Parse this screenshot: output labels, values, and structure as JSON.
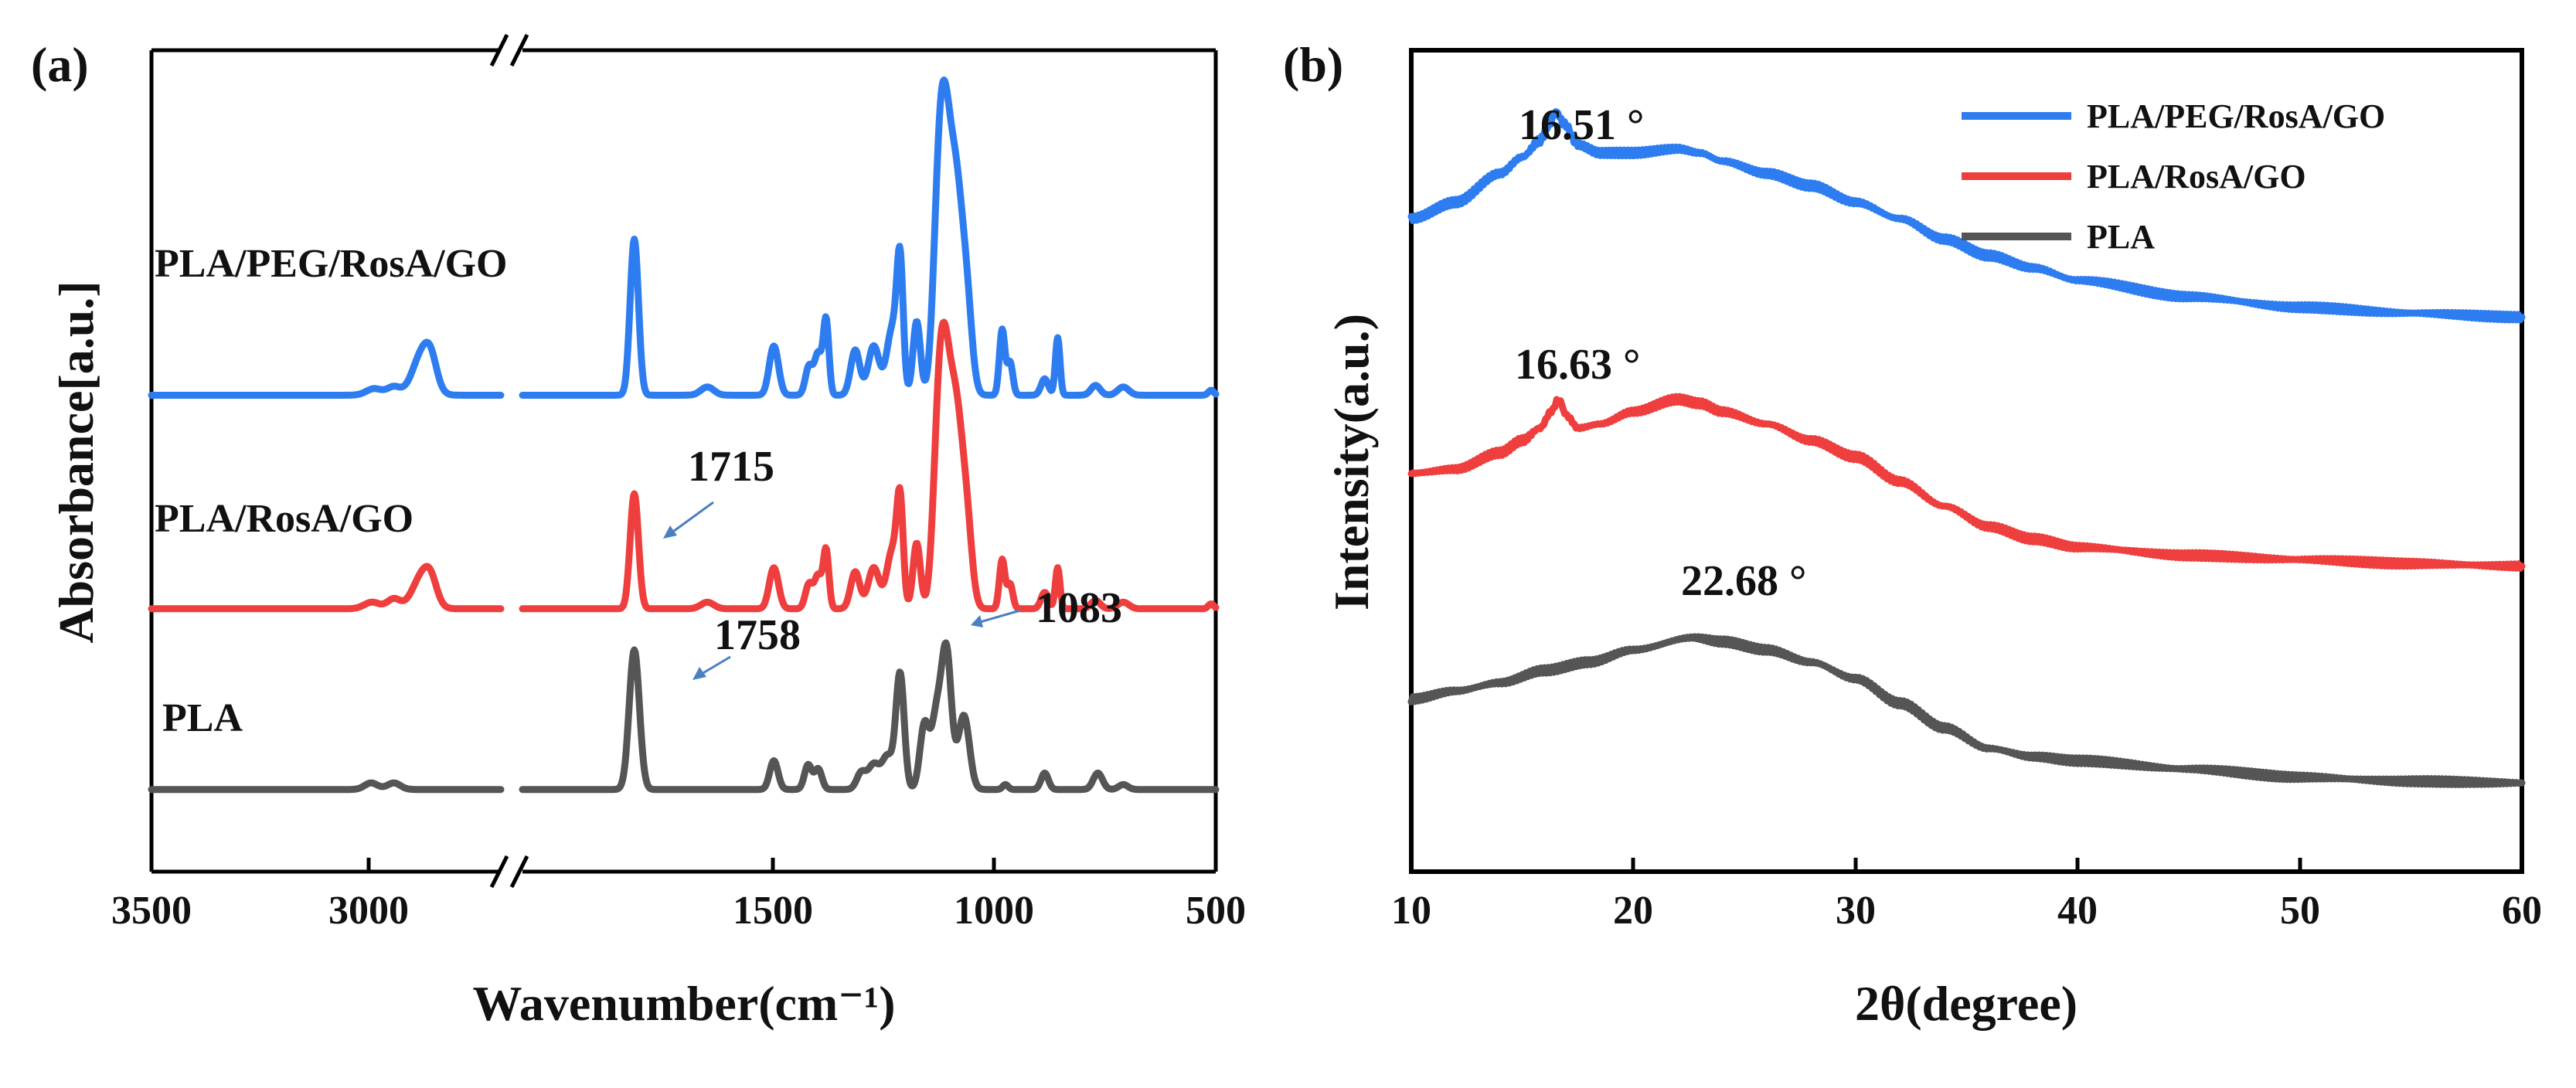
{
  "colors": {
    "PLA/PEG/RosA/GO": "#2e7df0",
    "PLA/RosA/GO": "#ef3e3e",
    "PLA": "#555555",
    "annotation_arrow": "#4a7fc1"
  },
  "chart_data": [
    {
      "panel": "(a)",
      "type": "line",
      "title": "",
      "xlabel": "Wavenumber(cm⁻¹)",
      "ylabel": "Absorbance[a.u.]",
      "x_reversed": true,
      "x_axis_break": true,
      "x_segments": [
        {
          "xlim": [
            3500,
            2700
          ],
          "ticks": [
            3500,
            3000
          ]
        },
        {
          "xlim": [
            2000,
            500
          ],
          "ticks": [
            1500,
            1000,
            500
          ]
        }
      ],
      "x_tick_labels": [
        "3500",
        "3000",
        "1500",
        "1000",
        "500"
      ],
      "series_labels": [
        "PLA/PEG/RosA/GO",
        "PLA/RosA/GO",
        "PLA"
      ],
      "series": [
        {
          "name": "PLA/PEG/RosA/GO",
          "baseline": 0.58,
          "peaks": [
            {
              "x": 2990,
              "h": 0.008,
              "w": 18
            },
            {
              "x": 2945,
              "h": 0.01,
              "w": 15
            },
            {
              "x": 2880,
              "h": 0.05,
              "w": 22
            },
            {
              "x": 2860,
              "h": 0.025,
              "w": 14
            },
            {
              "x": 1758,
              "h": 0.19,
              "w": 9
            },
            {
              "x": 1600,
              "h": 0.01,
              "w": 14
            },
            {
              "x": 1456,
              "h": 0.06,
              "w": 10
            },
            {
              "x": 1380,
              "h": 0.035,
              "w": 8
            },
            {
              "x": 1360,
              "h": 0.05,
              "w": 8
            },
            {
              "x": 1343,
              "h": 0.09,
              "w": 6
            },
            {
              "x": 1280,
              "h": 0.055,
              "w": 10
            },
            {
              "x": 1240,
              "h": 0.06,
              "w": 12
            },
            {
              "x": 1200,
              "h": 0.08,
              "w": 12
            },
            {
              "x": 1183,
              "h": 0.15,
              "w": 7
            },
            {
              "x": 1147,
              "h": 0.09,
              "w": 8
            },
            {
              "x": 1100,
              "h": 0.18,
              "w": 12
            },
            {
              "x": 1083,
              "h": 0.28,
              "w": 14
            },
            {
              "x": 1060,
              "h": 0.18,
              "w": 12
            },
            {
              "x": 1040,
              "h": 0.12,
              "w": 12
            },
            {
              "x": 962,
              "h": 0.08,
              "w": 6
            },
            {
              "x": 945,
              "h": 0.04,
              "w": 6
            },
            {
              "x": 870,
              "h": 0.02,
              "w": 8
            },
            {
              "x": 842,
              "h": 0.07,
              "w": 5
            },
            {
              "x": 760,
              "h": 0.012,
              "w": 10
            },
            {
              "x": 700,
              "h": 0.01,
              "w": 12
            },
            {
              "x": 510,
              "h": 0.006,
              "w": 6
            }
          ]
        },
        {
          "name": "PLA/RosA/GO",
          "baseline": 0.32,
          "peaks": [
            {
              "x": 2995,
              "h": 0.008,
              "w": 18
            },
            {
              "x": 2945,
              "h": 0.012,
              "w": 15
            },
            {
              "x": 2880,
              "h": 0.04,
              "w": 22
            },
            {
              "x": 2860,
              "h": 0.02,
              "w": 14
            },
            {
              "x": 1758,
              "h": 0.14,
              "w": 9
            },
            {
              "x": 1600,
              "h": 0.008,
              "w": 14
            },
            {
              "x": 1456,
              "h": 0.05,
              "w": 10
            },
            {
              "x": 1380,
              "h": 0.03,
              "w": 8
            },
            {
              "x": 1360,
              "h": 0.04,
              "w": 8
            },
            {
              "x": 1343,
              "h": 0.07,
              "w": 6
            },
            {
              "x": 1280,
              "h": 0.045,
              "w": 10
            },
            {
              "x": 1240,
              "h": 0.05,
              "w": 12
            },
            {
              "x": 1200,
              "h": 0.07,
              "w": 12
            },
            {
              "x": 1183,
              "h": 0.12,
              "w": 7
            },
            {
              "x": 1147,
              "h": 0.08,
              "w": 8
            },
            {
              "x": 1100,
              "h": 0.17,
              "w": 12
            },
            {
              "x": 1083,
              "h": 0.25,
              "w": 14
            },
            {
              "x": 1060,
              "h": 0.17,
              "w": 12
            },
            {
              "x": 1040,
              "h": 0.11,
              "w": 12
            },
            {
              "x": 962,
              "h": 0.06,
              "w": 6
            },
            {
              "x": 945,
              "h": 0.03,
              "w": 6
            },
            {
              "x": 870,
              "h": 0.02,
              "w": 8
            },
            {
              "x": 842,
              "h": 0.05,
              "w": 5
            },
            {
              "x": 760,
              "h": 0.01,
              "w": 10
            },
            {
              "x": 700,
              "h": 0.008,
              "w": 12
            },
            {
              "x": 510,
              "h": 0.006,
              "w": 6
            }
          ]
        },
        {
          "name": "PLA",
          "baseline": 0.1,
          "peaks": [
            {
              "x": 2997,
              "h": 0.008,
              "w": 15
            },
            {
              "x": 2945,
              "h": 0.008,
              "w": 15
            },
            {
              "x": 1758,
              "h": 0.17,
              "w": 11
            },
            {
              "x": 1456,
              "h": 0.035,
              "w": 9
            },
            {
              "x": 1382,
              "h": 0.03,
              "w": 8
            },
            {
              "x": 1360,
              "h": 0.025,
              "w": 8
            },
            {
              "x": 1267,
              "h": 0.02,
              "w": 10
            },
            {
              "x": 1240,
              "h": 0.03,
              "w": 12
            },
            {
              "x": 1210,
              "h": 0.04,
              "w": 12
            },
            {
              "x": 1183,
              "h": 0.14,
              "w": 9
            },
            {
              "x": 1130,
              "h": 0.08,
              "w": 10
            },
            {
              "x": 1105,
              "h": 0.08,
              "w": 10
            },
            {
              "x": 1083,
              "h": 0.17,
              "w": 11
            },
            {
              "x": 1045,
              "h": 0.09,
              "w": 12
            },
            {
              "x": 955,
              "h": 0.006,
              "w": 6
            },
            {
              "x": 870,
              "h": 0.02,
              "w": 8
            },
            {
              "x": 755,
              "h": 0.02,
              "w": 10
            },
            {
              "x": 700,
              "h": 0.006,
              "w": 10
            }
          ]
        }
      ],
      "annotations": [
        {
          "text": "1715",
          "series": "PLA/RosA/GO",
          "arrow_to_x": 1715
        },
        {
          "text": "1758",
          "series": "PLA",
          "arrow_to_x": 1758
        },
        {
          "text": "1083",
          "series": "PLA",
          "arrow_to_x": 1083
        }
      ]
    },
    {
      "panel": "(b)",
      "type": "line",
      "title": "",
      "xlabel": "2θ(degree)",
      "ylabel": "Intensity(a.u.)",
      "xlim": [
        10,
        60
      ],
      "xticks": [
        10,
        20,
        30,
        40,
        50,
        60
      ],
      "ylim": [
        0,
        1
      ],
      "legend": {
        "location": "top-right",
        "entries": [
          "PLA/PEG/RosA/GO",
          "PLA/RosA/GO",
          "PLA"
        ]
      },
      "series": [
        {
          "name": "PLA/PEG/RosA/GO",
          "x": [
            10,
            12,
            14,
            15,
            15.8,
            16.2,
            16.51,
            16.9,
            17.5,
            18.5,
            20,
            22,
            23,
            24,
            26,
            28,
            30,
            32,
            34,
            36,
            38,
            40,
            45,
            50,
            55,
            60
          ],
          "y": [
            0.795,
            0.815,
            0.85,
            0.87,
            0.89,
            0.91,
            0.925,
            0.91,
            0.885,
            0.875,
            0.875,
            0.88,
            0.875,
            0.865,
            0.85,
            0.835,
            0.815,
            0.795,
            0.77,
            0.75,
            0.735,
            0.72,
            0.7,
            0.687,
            0.68,
            0.675
          ]
        },
        {
          "name": "PLA/RosA/GO",
          "x": [
            10,
            12,
            14,
            15,
            15.8,
            16.3,
            16.63,
            17,
            17.5,
            18.5,
            20,
            22,
            23,
            24,
            26,
            28,
            30,
            32,
            34,
            36,
            38,
            40,
            45,
            50,
            55,
            60
          ],
          "y": [
            0.485,
            0.49,
            0.51,
            0.525,
            0.54,
            0.56,
            0.575,
            0.555,
            0.54,
            0.545,
            0.56,
            0.575,
            0.57,
            0.56,
            0.545,
            0.525,
            0.505,
            0.475,
            0.445,
            0.42,
            0.405,
            0.395,
            0.385,
            0.38,
            0.375,
            0.372
          ]
        },
        {
          "name": "PLA",
          "x": [
            10,
            12,
            14,
            16,
            18,
            20,
            22.68,
            24,
            26,
            28,
            30,
            32,
            34,
            36,
            38,
            40,
            45,
            50,
            55,
            60
          ],
          "y": [
            0.21,
            0.22,
            0.23,
            0.245,
            0.255,
            0.27,
            0.285,
            0.28,
            0.27,
            0.255,
            0.235,
            0.205,
            0.175,
            0.15,
            0.14,
            0.135,
            0.125,
            0.115,
            0.11,
            0.108
          ]
        }
      ],
      "annotations": [
        {
          "text": "16.51 °",
          "series": "PLA/PEG/RosA/GO",
          "x": 16.51
        },
        {
          "text": "16.63 °",
          "series": "PLA/RosA/GO",
          "x": 16.63
        },
        {
          "text": "22.68 °",
          "series": "PLA",
          "x": 22.68
        }
      ]
    }
  ]
}
